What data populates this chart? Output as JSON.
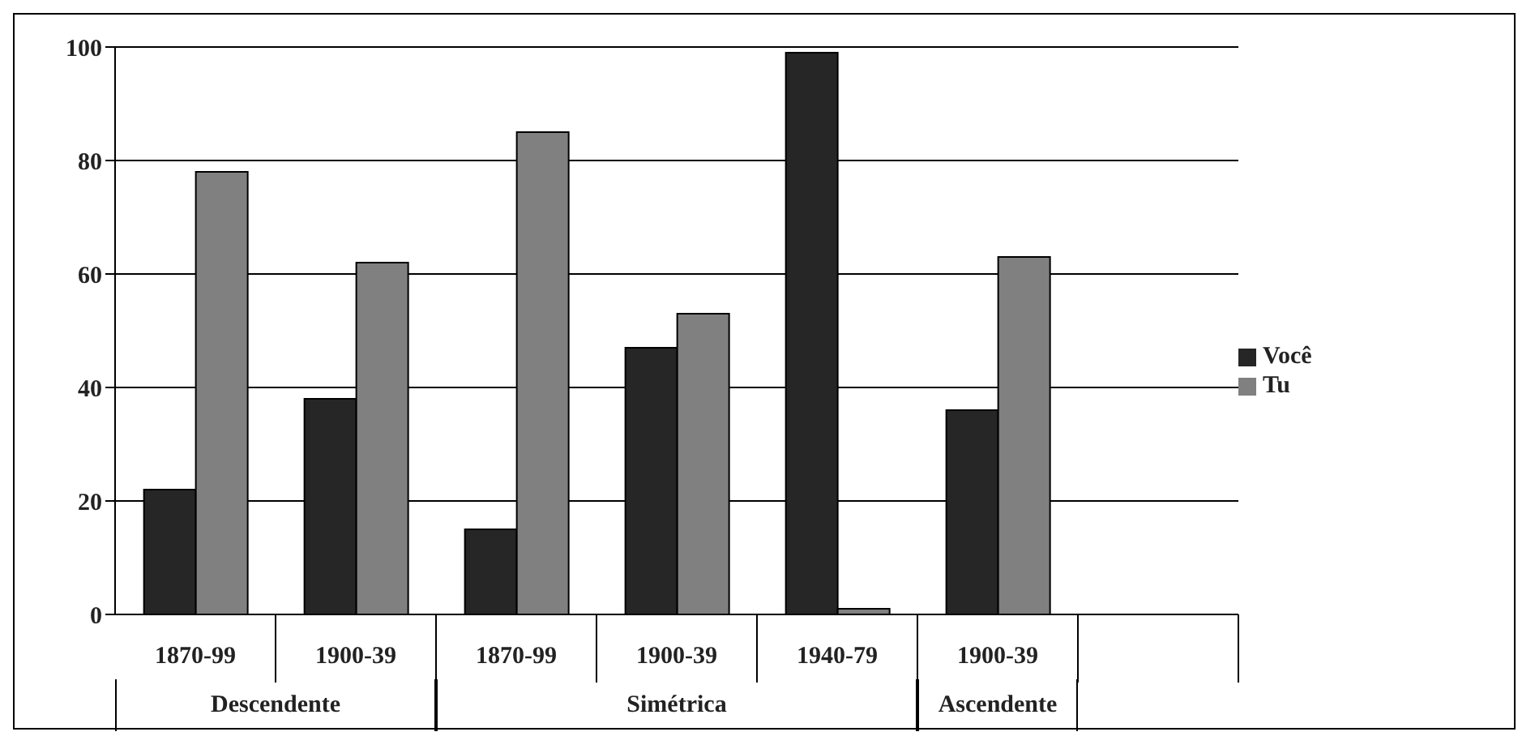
{
  "chart_data": {
    "type": "bar",
    "categories": [
      "1870-99",
      "1900-39",
      "1870-99",
      "1900-39",
      "1940-79",
      "1900-39",
      null
    ],
    "series": [
      {
        "name": "Você",
        "color": "#262626",
        "values": [
          22,
          38,
          15,
          47,
          99,
          36,
          null
        ]
      },
      {
        "name": "Tu",
        "color": "#808080",
        "values": [
          78,
          62,
          85,
          53,
          1,
          63,
          null
        ]
      }
    ],
    "ylim": [
      0,
      100
    ],
    "yticks": [
      0,
      20,
      40,
      60,
      80,
      100
    ],
    "grid": "y",
    "legend": "right",
    "annotations": [
      "Descendente",
      "Simétrica",
      "Ascendente"
    ]
  }
}
